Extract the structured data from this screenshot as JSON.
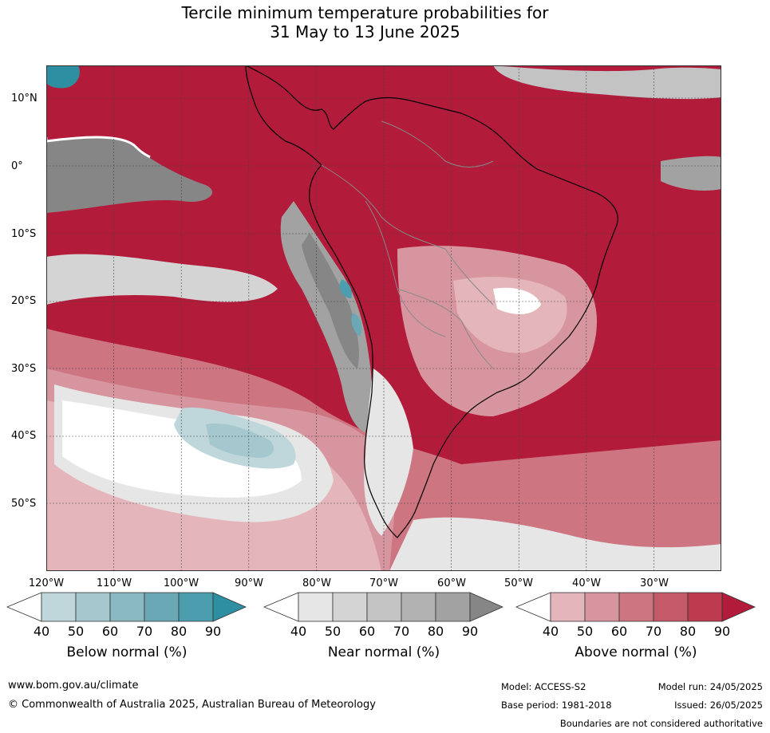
{
  "title_lines": [
    "Tercile minimum temperature probabilities for",
    "31 May to 13 June 2025"
  ],
  "map": {
    "lat_labels": [
      "10°N",
      "0°",
      "10°S",
      "20°S",
      "30°S",
      "40°S",
      "50°S"
    ],
    "lon_labels": [
      "120°W",
      "110°W",
      "100°W",
      "90°W",
      "80°W",
      "70°W",
      "60°W",
      "50°W",
      "40°W",
      "30°W"
    ],
    "lat_values": [
      10,
      0,
      -10,
      -20,
      -30,
      -40,
      -50
    ],
    "lon_values": [
      -120,
      -110,
      -100,
      -90,
      -80,
      -70,
      -60,
      -50,
      -40,
      -30
    ],
    "extent": {
      "lon_min": -120,
      "lon_max": -20,
      "lat_min": -60,
      "lat_max": 15
    }
  },
  "legends": [
    {
      "title": "Below normal (%)",
      "ticks": [
        "40",
        "50",
        "60",
        "70",
        "80",
        "90"
      ],
      "colors": [
        "#ffffff",
        "#bfd6db",
        "#a5c8cf",
        "#8ab9c2",
        "#6aa8b5",
        "#4c9dad",
        "#2e8fa3"
      ]
    },
    {
      "title": "Near normal (%)",
      "ticks": [
        "40",
        "50",
        "60",
        "70",
        "80",
        "90"
      ],
      "colors": [
        "#ffffff",
        "#e6e6e6",
        "#d4d4d4",
        "#c3c3c3",
        "#b2b2b2",
        "#a2a2a2",
        "#868686"
      ]
    },
    {
      "title": "Above normal (%)",
      "ticks": [
        "40",
        "50",
        "60",
        "70",
        "80",
        "90"
      ],
      "colors": [
        "#ffffff",
        "#e4b6bc",
        "#d7969f",
        "#cd7581",
        "#c45a69",
        "#bd3a4f",
        "#b21b3a"
      ]
    }
  ],
  "footer": {
    "url": "www.bom.gov.au/climate",
    "copyright": "© Commonwealth of Australia 2025, Australian Bureau of Meteorology",
    "model": "Model: ACCESS-S2",
    "model_run": "Model run: 24/05/2025",
    "base_period": "Base period: 1981-2018",
    "issued": "Issued: 26/05/2025",
    "disclaimer": "Boundaries are not considered authoritative"
  }
}
